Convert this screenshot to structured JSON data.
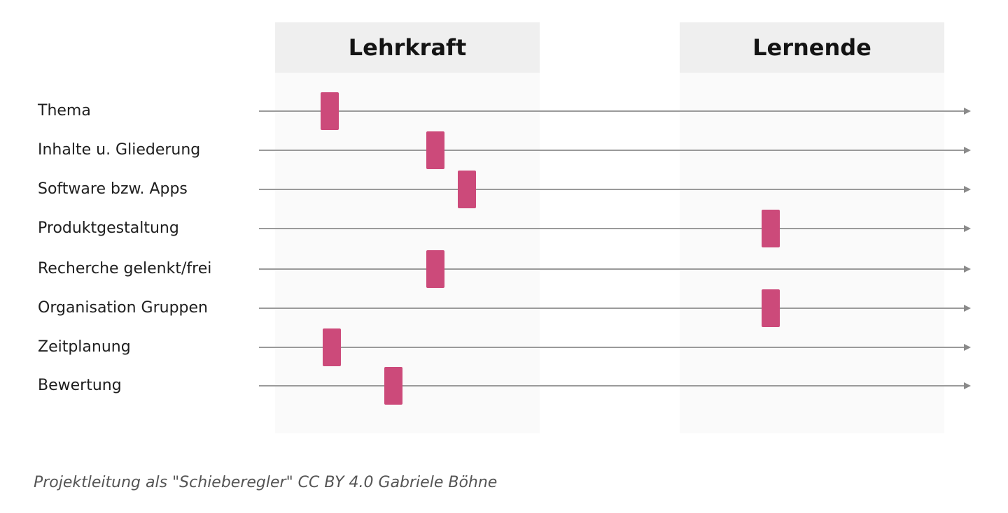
{
  "columns": {
    "teacher": "Lehrkraft",
    "learners": "Lernende"
  },
  "rows": [
    {
      "label": "Thema",
      "level": 0.1
    },
    {
      "label": "Inhalte u. Gliederung",
      "level": 0.25
    },
    {
      "label": "Software bzw. Apps",
      "level": 0.295
    },
    {
      "label": "Produktgestaltung",
      "level": 0.725
    },
    {
      "label": "Recherche gelenkt/frei",
      "level": 0.25
    },
    {
      "label": "Organisation Gruppen",
      "level": 0.725
    },
    {
      "label": "Zeitplanung",
      "level": 0.103
    },
    {
      "label": "Bewertung",
      "level": 0.19
    }
  ],
  "caption": "Projektleitung als \"Schieberegler\" CC BY 4.0 Gabriele Böhne",
  "colors": {
    "handle": "#cc4a7a",
    "track": "#9a9a9a",
    "column_header": "#efefef"
  }
}
